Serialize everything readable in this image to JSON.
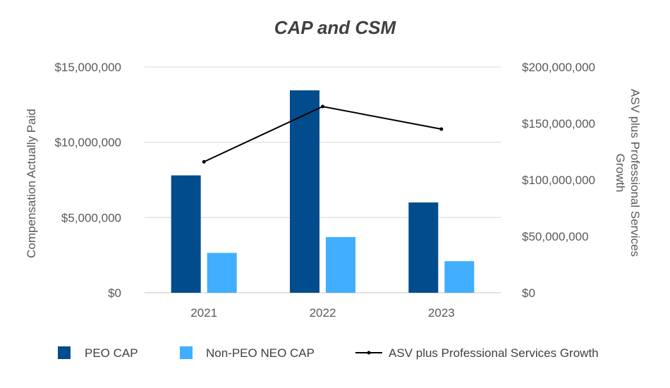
{
  "chart_data": {
    "type": "bar",
    "title": "CAP and CSM",
    "categories": [
      "2021",
      "2022",
      "2023"
    ],
    "ylabel_left": "Compensation Actually Paid",
    "ylabel_right_lines": [
      "ASV plus Professional Services",
      "Growth"
    ],
    "ylim_left": [
      0,
      15000000
    ],
    "ylim_right": [
      0,
      200000000
    ],
    "left_ticks": [
      0,
      5000000,
      10000000,
      15000000
    ],
    "left_tick_labels": [
      "$0",
      "$5,000,000",
      "$10,000,000",
      "$15,000,000"
    ],
    "right_ticks": [
      0,
      50000000,
      100000000,
      150000000,
      200000000
    ],
    "right_tick_labels": [
      "$0",
      "$50,000,000",
      "$100,000,000",
      "$150,000,000",
      "$200,000,000"
    ],
    "grid": true,
    "legend_position": "bottom",
    "series": [
      {
        "name": "PEO CAP",
        "type": "bar",
        "axis": "left",
        "color": "#004C8C",
        "values": [
          7800000,
          13450000,
          6000000
        ]
      },
      {
        "name": "Non-PEO NEO CAP",
        "type": "bar",
        "axis": "left",
        "color": "#41AEFF",
        "values": [
          2650000,
          3700000,
          2100000
        ]
      },
      {
        "name": "ASV plus Professional Services Growth",
        "type": "line",
        "axis": "right",
        "color": "#000000",
        "values": [
          116000000,
          165000000,
          145000000
        ]
      }
    ]
  }
}
